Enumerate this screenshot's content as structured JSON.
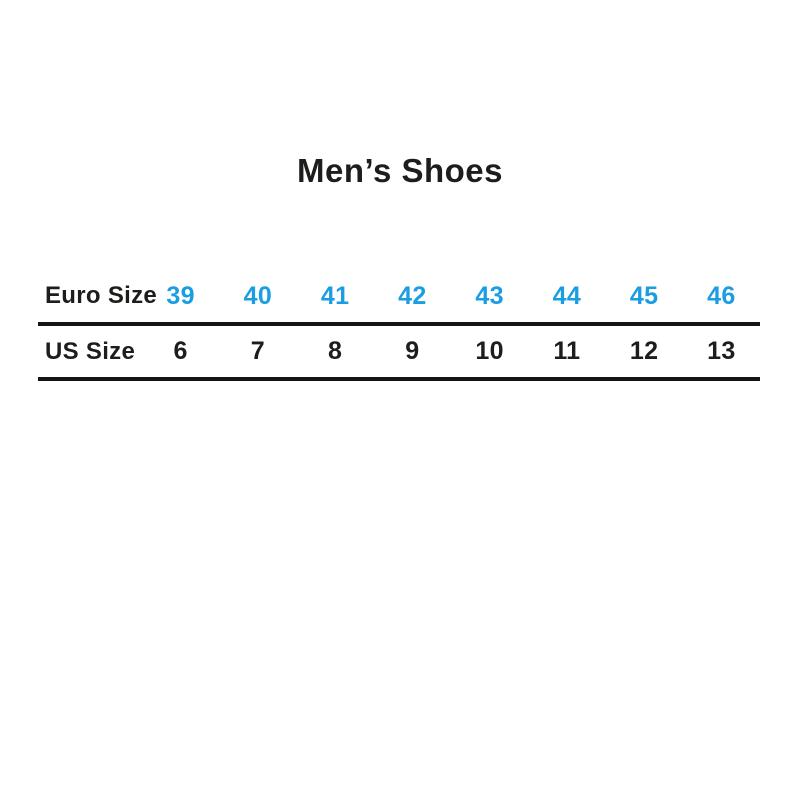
{
  "title": "Men’s Shoes",
  "colors": {
    "background": "#ffffff",
    "text": "#1d1d1b",
    "euro_accent": "#1b9de2",
    "rule_line": "#141414"
  },
  "chart_data": {
    "type": "table",
    "title": "Men’s Shoes",
    "rows": [
      {
        "header": "Euro Size",
        "values": [
          "39",
          "40",
          "41",
          "42",
          "43",
          "44",
          "45",
          "46"
        ]
      },
      {
        "header": "US Size",
        "values": [
          "6",
          "7",
          "8",
          "9",
          "10",
          "11",
          "12",
          "13"
        ]
      }
    ],
    "layout_hints": {
      "row_headers_left": true,
      "euro_values_color": "#1b9de2",
      "us_values_color": "#1d1d1b",
      "thick_rule_below_each_row": true
    }
  }
}
